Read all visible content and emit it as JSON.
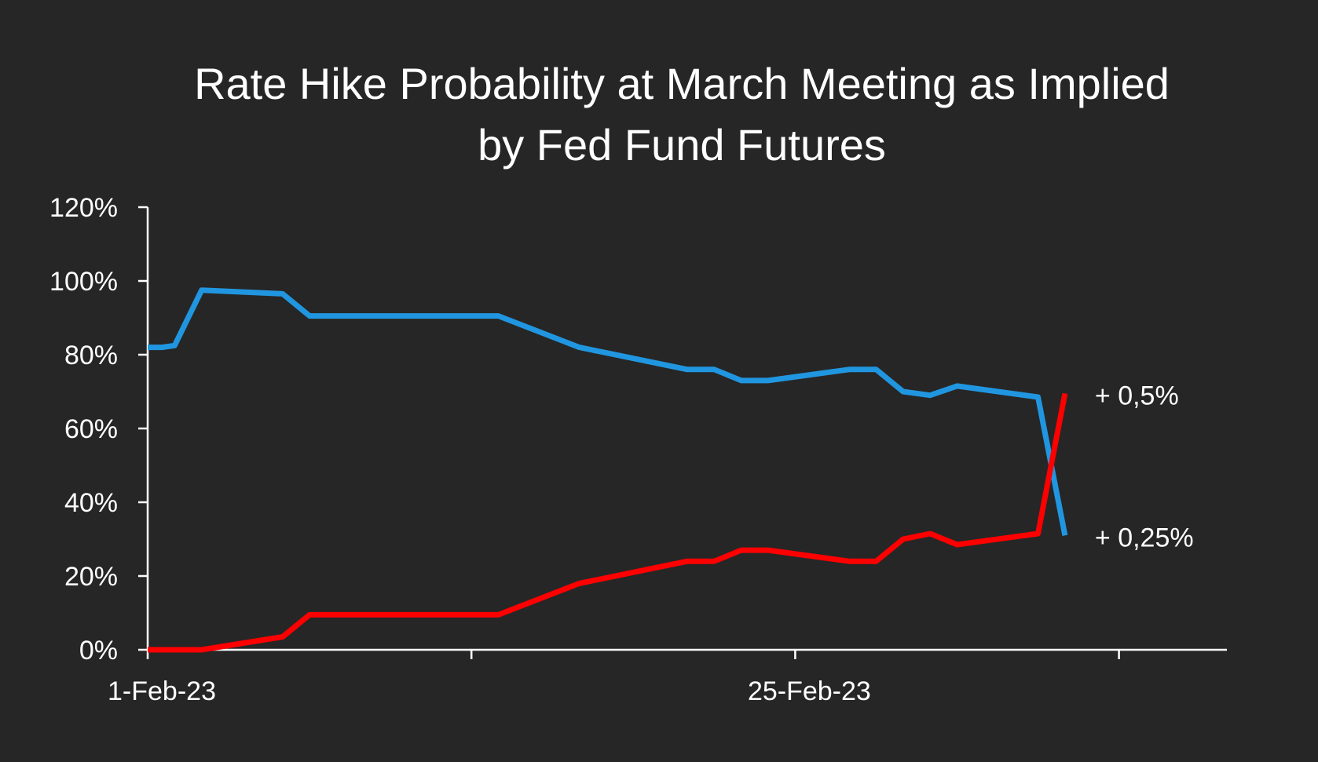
{
  "chart_data": {
    "type": "line",
    "title": [
      "Rate Hike Probability at March Meeting as Implied",
      "by Fed Fund Futures"
    ],
    "xlabel": "",
    "ylabel": "",
    "ylim": [
      0,
      1.2
    ],
    "y_ticks": [
      {
        "value": 0,
        "label": "0%"
      },
      {
        "value": 0.2,
        "label": "20%"
      },
      {
        "value": 0.4,
        "label": "40%"
      },
      {
        "value": 0.6,
        "label": "60%"
      },
      {
        "value": 0.8,
        "label": "80%"
      },
      {
        "value": 1.0,
        "label": "100%"
      },
      {
        "value": 1.2,
        "label": "120%"
      }
    ],
    "xlim": [
      "2023-02-01",
      "2023-03-13"
    ],
    "x_ticks": [
      "2023-02-01",
      "2023-02-13",
      "2023-02-25",
      "2023-03-09"
    ],
    "x_tick_labels": [
      {
        "date": "2023-02-01",
        "label": "1-Feb-23"
      },
      {
        "date": "2023-02-25",
        "label": "25-Feb-23"
      }
    ],
    "grid": false,
    "legend": "none",
    "series": [
      {
        "label": "+ 0,25%",
        "color": "#2196e0",
        "points": [
          [
            "2023-02-01",
            0.82
          ],
          [
            "2023-02-01",
            0.82
          ],
          [
            "2023-02-02",
            0.825
          ],
          [
            "2023-02-03",
            0.975
          ],
          [
            "2023-02-06",
            0.965
          ],
          [
            "2023-02-07",
            0.905
          ],
          [
            "2023-02-14",
            0.905
          ],
          [
            "2023-02-17",
            0.82
          ],
          [
            "2023-02-21",
            0.76
          ],
          [
            "2023-02-22",
            0.76
          ],
          [
            "2023-02-23",
            0.73
          ],
          [
            "2023-02-24",
            0.73
          ],
          [
            "2023-02-27",
            0.76
          ],
          [
            "2023-02-28",
            0.76
          ],
          [
            "2023-03-01",
            0.7
          ],
          [
            "2023-03-02",
            0.69
          ],
          [
            "2023-03-03",
            0.715
          ],
          [
            "2023-03-06",
            0.685
          ],
          [
            "2023-03-07",
            0.31
          ]
        ]
      },
      {
        "label": "+ 0,5%",
        "color": "#ff0000",
        "points": [
          [
            "2023-02-01",
            0.0
          ],
          [
            "2023-02-01",
            0.0
          ],
          [
            "2023-02-02",
            0.0
          ],
          [
            "2023-02-03",
            0.0
          ],
          [
            "2023-02-06",
            0.035
          ],
          [
            "2023-02-07",
            0.095
          ],
          [
            "2023-02-14",
            0.095
          ],
          [
            "2023-02-17",
            0.18
          ],
          [
            "2023-02-21",
            0.24
          ],
          [
            "2023-02-22",
            0.24
          ],
          [
            "2023-02-23",
            0.27
          ],
          [
            "2023-02-24",
            0.27
          ],
          [
            "2023-02-27",
            0.24
          ],
          [
            "2023-02-28",
            0.24
          ],
          [
            "2023-03-01",
            0.3
          ],
          [
            "2023-03-02",
            0.315
          ],
          [
            "2023-03-03",
            0.285
          ],
          [
            "2023-03-06",
            0.315
          ],
          [
            "2023-03-07",
            0.695
          ]
        ]
      }
    ]
  }
}
